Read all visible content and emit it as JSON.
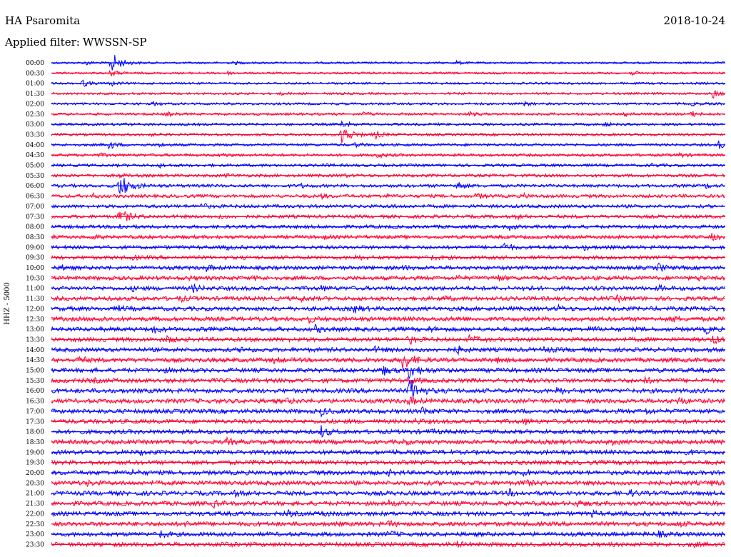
{
  "header": {
    "station": "HA Psaromita",
    "date": "2018-10-24",
    "filter_label": "Applied filter:",
    "filter_value": "WWSSN-SP"
  },
  "chart_data": {
    "type": "line",
    "title": "HA Psaromita",
    "date": "2018-10-24",
    "ylabel": "HHZ - 5000",
    "colors": [
      "#0000ff",
      "#ff0033"
    ],
    "traces": [
      {
        "time": "00:00",
        "color": "#0000ff",
        "events": [
          {
            "x": 0.05,
            "amp": 0.6
          },
          {
            "x": 0.088,
            "amp": 3.0
          },
          {
            "x": 0.27,
            "amp": 0.4
          },
          {
            "x": 0.6,
            "amp": 0.5
          }
        ]
      },
      {
        "time": "00:30",
        "color": "#ff0033",
        "events": [
          {
            "x": 0.088,
            "amp": 1.0
          },
          {
            "x": 0.26,
            "amp": 0.4
          },
          {
            "x": 0.86,
            "amp": 0.5
          }
        ]
      },
      {
        "time": "01:00",
        "color": "#0000ff",
        "events": [
          {
            "x": 0.045,
            "amp": 1.0
          },
          {
            "x": 0.088,
            "amp": 0.6
          }
        ]
      },
      {
        "time": "01:30",
        "color": "#ff0033",
        "events": [
          {
            "x": 0.34,
            "amp": 0.3
          },
          {
            "x": 0.98,
            "amp": 1.3
          }
        ]
      },
      {
        "time": "02:00",
        "color": "#0000ff",
        "events": [
          {
            "x": 0.15,
            "amp": 0.4
          },
          {
            "x": 0.7,
            "amp": 0.5
          },
          {
            "x": 0.95,
            "amp": 0.4
          }
        ]
      },
      {
        "time": "02:30",
        "color": "#ff0033",
        "events": [
          {
            "x": 0.17,
            "amp": 0.5
          },
          {
            "x": 0.46,
            "amp": 0.6
          },
          {
            "x": 0.62,
            "amp": 0.5
          },
          {
            "x": 0.85,
            "amp": 0.6
          },
          {
            "x": 0.95,
            "amp": 0.7
          }
        ]
      },
      {
        "time": "03:00",
        "color": "#0000ff",
        "events": [
          {
            "x": 0.1,
            "amp": 0.4
          },
          {
            "x": 0.43,
            "amp": 1.0
          },
          {
            "x": 0.82,
            "amp": 0.5
          }
        ]
      },
      {
        "time": "03:30",
        "color": "#ff0033",
        "events": [
          {
            "x": 0.14,
            "amp": 0.5
          },
          {
            "x": 0.43,
            "amp": 2.6
          },
          {
            "x": 0.48,
            "amp": 1.0
          }
        ]
      },
      {
        "time": "04:00",
        "color": "#0000ff",
        "events": [
          {
            "x": 0.085,
            "amp": 1.2
          },
          {
            "x": 0.16,
            "amp": 0.5
          },
          {
            "x": 0.45,
            "amp": 0.6
          },
          {
            "x": 0.99,
            "amp": 0.9
          }
        ]
      },
      {
        "time": "04:30",
        "color": "#ff0033",
        "events": [
          {
            "x": 0.07,
            "amp": 0.4
          },
          {
            "x": 0.25,
            "amp": 0.5
          },
          {
            "x": 0.48,
            "amp": 1.0
          },
          {
            "x": 0.93,
            "amp": 0.6
          }
        ]
      },
      {
        "time": "05:00",
        "color": "#0000ff",
        "events": [
          {
            "x": 0.16,
            "amp": 0.4
          },
          {
            "x": 0.4,
            "amp": 0.4
          },
          {
            "x": 0.89,
            "amp": 0.4
          }
        ]
      },
      {
        "time": "05:30",
        "color": "#ff0033",
        "events": [
          {
            "x": 0.1,
            "amp": 0.4
          },
          {
            "x": 0.26,
            "amp": 0.4
          },
          {
            "x": 0.43,
            "amp": 0.4
          }
        ]
      },
      {
        "time": "06:00",
        "color": "#0000ff",
        "events": [
          {
            "x": 0.1,
            "amp": 3.5
          },
          {
            "x": 0.37,
            "amp": 0.4
          },
          {
            "x": 0.6,
            "amp": 1.4
          },
          {
            "x": 0.97,
            "amp": 0.6
          }
        ]
      },
      {
        "time": "06:30",
        "color": "#ff0033",
        "events": [
          {
            "x": 0.06,
            "amp": 0.5
          },
          {
            "x": 0.4,
            "amp": 0.5
          },
          {
            "x": 0.49,
            "amp": 0.4
          },
          {
            "x": 0.63,
            "amp": 0.8
          },
          {
            "x": 0.7,
            "amp": 0.5
          }
        ]
      },
      {
        "time": "07:00",
        "color": "#0000ff",
        "events": [
          {
            "x": 0.22,
            "amp": 0.9
          },
          {
            "x": 0.5,
            "amp": 0.3
          }
        ]
      },
      {
        "time": "07:30",
        "color": "#ff0033",
        "events": [
          {
            "x": 0.1,
            "amp": 2.0
          },
          {
            "x": 0.25,
            "amp": 0.4
          },
          {
            "x": 0.69,
            "amp": 0.5
          }
        ]
      },
      {
        "time": "08:00",
        "color": "#0000ff",
        "events": [
          {
            "x": 0.1,
            "amp": 0.7
          },
          {
            "x": 0.68,
            "amp": 0.7
          }
        ]
      },
      {
        "time": "08:30",
        "color": "#ff0033",
        "events": [
          {
            "x": 0.06,
            "amp": 0.5
          },
          {
            "x": 0.4,
            "amp": 0.5
          },
          {
            "x": 0.98,
            "amp": 0.7
          }
        ]
      },
      {
        "time": "09:00",
        "color": "#0000ff",
        "events": [
          {
            "x": 0.26,
            "amp": 0.4
          },
          {
            "x": 0.67,
            "amp": 1.2
          },
          {
            "x": 0.79,
            "amp": 0.5
          }
        ]
      },
      {
        "time": "09:30",
        "color": "#ff0033",
        "events": [
          {
            "x": 0.12,
            "amp": 0.4
          },
          {
            "x": 0.45,
            "amp": 0.5
          },
          {
            "x": 0.56,
            "amp": 0.6
          }
        ]
      },
      {
        "time": "10:00",
        "color": "#0000ff",
        "events": [
          {
            "x": 0.015,
            "amp": 0.5
          },
          {
            "x": 0.23,
            "amp": 0.7
          },
          {
            "x": 0.52,
            "amp": 0.5
          },
          {
            "x": 0.9,
            "amp": 1.0
          }
        ]
      },
      {
        "time": "10:30",
        "color": "#ff0033",
        "events": [
          {
            "x": 0.2,
            "amp": 0.5
          },
          {
            "x": 0.3,
            "amp": 0.4
          },
          {
            "x": 0.6,
            "amp": 0.5
          },
          {
            "x": 0.66,
            "amp": 0.9
          },
          {
            "x": 0.96,
            "amp": 0.5
          }
        ]
      },
      {
        "time": "11:00",
        "color": "#0000ff",
        "events": [
          {
            "x": 0.12,
            "amp": 0.5
          },
          {
            "x": 0.21,
            "amp": 0.9
          },
          {
            "x": 0.4,
            "amp": 0.5
          },
          {
            "x": 0.7,
            "amp": 0.6
          },
          {
            "x": 0.9,
            "amp": 0.6
          }
        ]
      },
      {
        "time": "11:30",
        "color": "#ff0033",
        "events": [
          {
            "x": 0.19,
            "amp": 0.6
          },
          {
            "x": 0.37,
            "amp": 0.5
          },
          {
            "x": 0.58,
            "amp": 0.5
          },
          {
            "x": 0.84,
            "amp": 0.6
          }
        ]
      },
      {
        "time": "12:00",
        "color": "#0000ff",
        "events": [
          {
            "x": 0.1,
            "amp": 0.5
          },
          {
            "x": 0.45,
            "amp": 1.0
          },
          {
            "x": 0.75,
            "amp": 0.7
          },
          {
            "x": 0.97,
            "amp": 0.9
          }
        ]
      },
      {
        "time": "12:30",
        "color": "#ff0033",
        "events": [
          {
            "x": 0.07,
            "amp": 0.5
          },
          {
            "x": 0.38,
            "amp": 0.9
          },
          {
            "x": 0.6,
            "amp": 0.6
          },
          {
            "x": 0.92,
            "amp": 0.7
          }
        ]
      },
      {
        "time": "13:00",
        "color": "#0000ff",
        "events": [
          {
            "x": 0.15,
            "amp": 0.9
          },
          {
            "x": 0.39,
            "amp": 0.9
          },
          {
            "x": 0.56,
            "amp": 0.5
          },
          {
            "x": 0.8,
            "amp": 0.6
          },
          {
            "x": 0.97,
            "amp": 1.0
          }
        ]
      },
      {
        "time": "13:30",
        "color": "#ff0033",
        "events": [
          {
            "x": 0.17,
            "amp": 0.8
          },
          {
            "x": 0.53,
            "amp": 1.2
          },
          {
            "x": 0.62,
            "amp": 0.8
          },
          {
            "x": 0.98,
            "amp": 1.1
          }
        ]
      },
      {
        "time": "14:00",
        "color": "#0000ff",
        "events": [
          {
            "x": 0.28,
            "amp": 0.7
          },
          {
            "x": 0.48,
            "amp": 0.5
          },
          {
            "x": 0.6,
            "amp": 1.0
          },
          {
            "x": 0.73,
            "amp": 0.6
          }
        ]
      },
      {
        "time": "14:30",
        "color": "#ff0033",
        "events": [
          {
            "x": 0.04,
            "amp": 1.0
          },
          {
            "x": 0.33,
            "amp": 0.6
          },
          {
            "x": 0.52,
            "amp": 2.5
          },
          {
            "x": 0.66,
            "amp": 0.5
          }
        ]
      },
      {
        "time": "15:00",
        "color": "#0000ff",
        "events": [
          {
            "x": 0.16,
            "amp": 0.6
          },
          {
            "x": 0.49,
            "amp": 1.4
          },
          {
            "x": 0.53,
            "amp": 1.8
          }
        ]
      },
      {
        "time": "15:30",
        "color": "#ff0033",
        "events": [
          {
            "x": 0.06,
            "amp": 0.4
          },
          {
            "x": 0.53,
            "amp": 1.0
          },
          {
            "x": 0.88,
            "amp": 0.7
          }
        ]
      },
      {
        "time": "16:00",
        "color": "#0000ff",
        "events": [
          {
            "x": 0.53,
            "amp": 3.5
          },
          {
            "x": 0.75,
            "amp": 0.9
          }
        ]
      },
      {
        "time": "16:30",
        "color": "#ff0033",
        "events": [
          {
            "x": 0.35,
            "amp": 0.5
          },
          {
            "x": 0.53,
            "amp": 1.2
          },
          {
            "x": 0.93,
            "amp": 0.9
          }
        ]
      },
      {
        "time": "17:00",
        "color": "#0000ff",
        "events": [
          {
            "x": 0.4,
            "amp": 0.9
          },
          {
            "x": 0.55,
            "amp": 1.0
          },
          {
            "x": 0.88,
            "amp": 0.7
          }
        ]
      },
      {
        "time": "17:30",
        "color": "#ff0033",
        "events": [
          {
            "x": 0.54,
            "amp": 0.5
          },
          {
            "x": 0.7,
            "amp": 0.8
          }
        ]
      },
      {
        "time": "18:00",
        "color": "#0000ff",
        "events": [
          {
            "x": 0.4,
            "amp": 1.4
          },
          {
            "x": 0.56,
            "amp": 0.4
          }
        ]
      },
      {
        "time": "18:30",
        "color": "#ff0033",
        "events": [
          {
            "x": 0.26,
            "amp": 0.7
          },
          {
            "x": 0.52,
            "amp": 0.5
          },
          {
            "x": 0.83,
            "amp": 0.5
          }
        ]
      },
      {
        "time": "19:00",
        "color": "#0000ff",
        "events": [
          {
            "x": 0.13,
            "amp": 0.5
          },
          {
            "x": 0.5,
            "amp": 0.4
          },
          {
            "x": 0.94,
            "amp": 0.6
          }
        ]
      },
      {
        "time": "19:30",
        "color": "#ff0033",
        "events": [
          {
            "x": 0.3,
            "amp": 0.5
          },
          {
            "x": 0.6,
            "amp": 0.5
          },
          {
            "x": 0.85,
            "amp": 0.5
          }
        ]
      },
      {
        "time": "20:00",
        "color": "#0000ff",
        "events": [
          {
            "x": 0.12,
            "amp": 0.6
          },
          {
            "x": 0.5,
            "amp": 0.5
          },
          {
            "x": 0.7,
            "amp": 0.6
          }
        ]
      },
      {
        "time": "20:30",
        "color": "#ff0033",
        "events": [
          {
            "x": 0.05,
            "amp": 0.6
          },
          {
            "x": 0.7,
            "amp": 0.9
          },
          {
            "x": 0.98,
            "amp": 0.5
          }
        ]
      },
      {
        "time": "21:00",
        "color": "#0000ff",
        "events": [
          {
            "x": 0.27,
            "amp": 0.6
          },
          {
            "x": 0.68,
            "amp": 0.7
          },
          {
            "x": 0.86,
            "amp": 0.6
          }
        ]
      },
      {
        "time": "21:30",
        "color": "#ff0033",
        "events": [
          {
            "x": 0.24,
            "amp": 0.8
          },
          {
            "x": 0.5,
            "amp": 0.6
          },
          {
            "x": 0.78,
            "amp": 0.6
          }
        ]
      },
      {
        "time": "22:00",
        "color": "#0000ff",
        "events": [
          {
            "x": 0.35,
            "amp": 0.6
          },
          {
            "x": 0.4,
            "amp": 0.7
          },
          {
            "x": 0.8,
            "amp": 0.6
          }
        ]
      },
      {
        "time": "22:30",
        "color": "#ff0033",
        "events": [
          {
            "x": 0.2,
            "amp": 0.6
          },
          {
            "x": 0.5,
            "amp": 0.6
          },
          {
            "x": 0.93,
            "amp": 0.6
          }
        ]
      },
      {
        "time": "23:00",
        "color": "#0000ff",
        "events": [
          {
            "x": 0.16,
            "amp": 0.9
          },
          {
            "x": 0.5,
            "amp": 0.7
          },
          {
            "x": 0.9,
            "amp": 0.6
          }
        ]
      },
      {
        "time": "23:30",
        "color": "#ff0033",
        "events": [
          {
            "x": 0.25,
            "amp": 0.6
          },
          {
            "x": 0.6,
            "amp": 0.6
          },
          {
            "x": 0.95,
            "amp": 0.5
          }
        ]
      }
    ]
  }
}
